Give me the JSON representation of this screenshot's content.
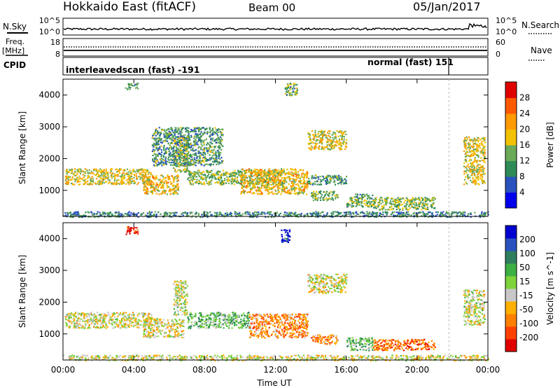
{
  "header": {
    "title": "Hokkaido East (fitACF)",
    "beam": "Beam 00",
    "date": "05/Jan/2017"
  },
  "left_labels": {
    "nsky": "N.Sky",
    "freq": "Freq.",
    "freq_unit": "[MHz]",
    "cpid": "CPID"
  },
  "right_labels": {
    "nsearch": "N.Search",
    "nave": "Nave"
  },
  "noise_panel": {
    "left_ticks": [
      "10^5",
      "10^0"
    ],
    "right_ticks": [
      "10^5",
      "10^0"
    ]
  },
  "freq_panel": {
    "left_ticks": [
      "18",
      "8"
    ],
    "right_ticks": [
      "60",
      "0"
    ]
  },
  "cpid_panel": {
    "mode1": "interleavedscan (fast) -191",
    "mode2": "normal (fast) 151"
  },
  "colors": {
    "power": [
      "#0000ee",
      "#2a52be",
      "#2e8b57",
      "#6aaa58",
      "#f2c200",
      "#ff9a00",
      "#ff5a00",
      "#e00000"
    ],
    "velocity": [
      "#e00000",
      "#ff4000",
      "#ff8000",
      "#ffb000",
      "#c8c8c8",
      "#7fd33a",
      "#3cb043",
      "#2f7f5f",
      "#2a52be",
      "#0000d0"
    ]
  },
  "chart_data": [
    {
      "type": "heatmap",
      "name": "power",
      "ylabel": "Slant Range [km]",
      "xlabel": "Time UT",
      "xlim": [
        0,
        24
      ],
      "ylim": [
        180,
        4500
      ],
      "x_ticks": [
        "00:00",
        "04:00",
        "08:00",
        "12:00",
        "16:00",
        "20:00",
        "00:00"
      ],
      "y_ticks": [
        "1000",
        "2000",
        "3000",
        "4000"
      ],
      "colorbar_label": "Power [dB]",
      "colorbar_ticks": [
        "4",
        "8",
        "12",
        "16",
        "20",
        "24",
        "28"
      ],
      "colorbar_range": [
        0,
        32
      ],
      "regions": [
        {
          "t0": 0.1,
          "t1": 5.0,
          "r0": 1200,
          "r1": 1700,
          "level": 0.55
        },
        {
          "t0": 4.5,
          "t1": 6.5,
          "r0": 900,
          "r1": 1500,
          "level": 0.6
        },
        {
          "t0": 6.2,
          "t1": 7.0,
          "r0": 1600,
          "r1": 2700,
          "level": 0.5
        },
        {
          "t0": 5.0,
          "t1": 9.0,
          "r0": 1800,
          "r1": 3000,
          "level": 0.35
        },
        {
          "t0": 7.0,
          "t1": 12.5,
          "r0": 1200,
          "r1": 1650,
          "level": 0.45
        },
        {
          "t0": 10.0,
          "t1": 13.8,
          "r0": 900,
          "r1": 1700,
          "level": 0.6
        },
        {
          "t0": 13.8,
          "t1": 16.0,
          "r0": 2300,
          "r1": 2900,
          "level": 0.55
        },
        {
          "t0": 13.8,
          "t1": 16.0,
          "r0": 1200,
          "r1": 1500,
          "level": 0.35
        },
        {
          "t0": 14.0,
          "t1": 15.5,
          "r0": 700,
          "r1": 1000,
          "level": 0.45
        },
        {
          "t0": 16.0,
          "t1": 17.5,
          "r0": 500,
          "r1": 900,
          "level": 0.4
        },
        {
          "t0": 17.5,
          "t1": 21.0,
          "r0": 400,
          "r1": 800,
          "level": 0.45
        },
        {
          "t0": 22.6,
          "t1": 23.8,
          "r0": 1200,
          "r1": 2700,
          "level": 0.55
        },
        {
          "t0": 3.5,
          "t1": 4.2,
          "r0": 4200,
          "r1": 4400,
          "level": 0.4
        },
        {
          "t0": 12.5,
          "t1": 13.2,
          "r0": 4000,
          "r1": 4400,
          "level": 0.4
        },
        {
          "t0": 0.0,
          "t1": 24.0,
          "r0": 180,
          "r1": 350,
          "level": 0.3
        }
      ]
    },
    {
      "type": "heatmap",
      "name": "velocity",
      "ylabel": "Slant Range [km]",
      "xlabel": "Time UT",
      "xlim": [
        0,
        24
      ],
      "ylim": [
        180,
        4500
      ],
      "x_ticks": [
        "00:00",
        "04:00",
        "08:00",
        "12:00",
        "16:00",
        "20:00",
        "00:00"
      ],
      "y_ticks": [
        "1000",
        "2000",
        "3000",
        "4000"
      ],
      "colorbar_label": "Velocity [m s^-1]",
      "colorbar_ticks": [
        "-200",
        "-100",
        "-50",
        "-15",
        "15",
        "50",
        "100",
        "200"
      ],
      "colorbar_range": [
        -250,
        250
      ],
      "regions": [
        {
          "t0": 0.1,
          "t1": 5.0,
          "r0": 1200,
          "r1": 1700,
          "level": 0.45
        },
        {
          "t0": 4.5,
          "t1": 6.8,
          "r0": 900,
          "r1": 1500,
          "level": 0.45
        },
        {
          "t0": 6.2,
          "t1": 7.0,
          "r0": 1600,
          "r1": 2700,
          "level": 0.48
        },
        {
          "t0": 7.0,
          "t1": 10.5,
          "r0": 1200,
          "r1": 1700,
          "level": 0.6
        },
        {
          "t0": 10.5,
          "t1": 13.8,
          "r0": 900,
          "r1": 1650,
          "level": 0.27
        },
        {
          "t0": 13.8,
          "t1": 16.0,
          "r0": 2300,
          "r1": 2900,
          "level": 0.45
        },
        {
          "t0": 14.0,
          "t1": 15.5,
          "r0": 700,
          "r1": 1000,
          "level": 0.27
        },
        {
          "t0": 16.0,
          "t1": 17.5,
          "r0": 500,
          "r1": 900,
          "level": 0.6
        },
        {
          "t0": 17.5,
          "t1": 21.0,
          "r0": 500,
          "r1": 850,
          "level": 0.22
        },
        {
          "t0": 22.6,
          "t1": 23.8,
          "r0": 1300,
          "r1": 2400,
          "level": 0.45
        },
        {
          "t0": 3.5,
          "t1": 4.2,
          "r0": 4150,
          "r1": 4400,
          "level": 0.05
        },
        {
          "t0": 12.3,
          "t1": 12.8,
          "r0": 3900,
          "r1": 4300,
          "level": 0.95
        },
        {
          "t0": 0.0,
          "t1": 24.0,
          "r0": 180,
          "r1": 350,
          "level": 0.45
        }
      ]
    }
  ]
}
